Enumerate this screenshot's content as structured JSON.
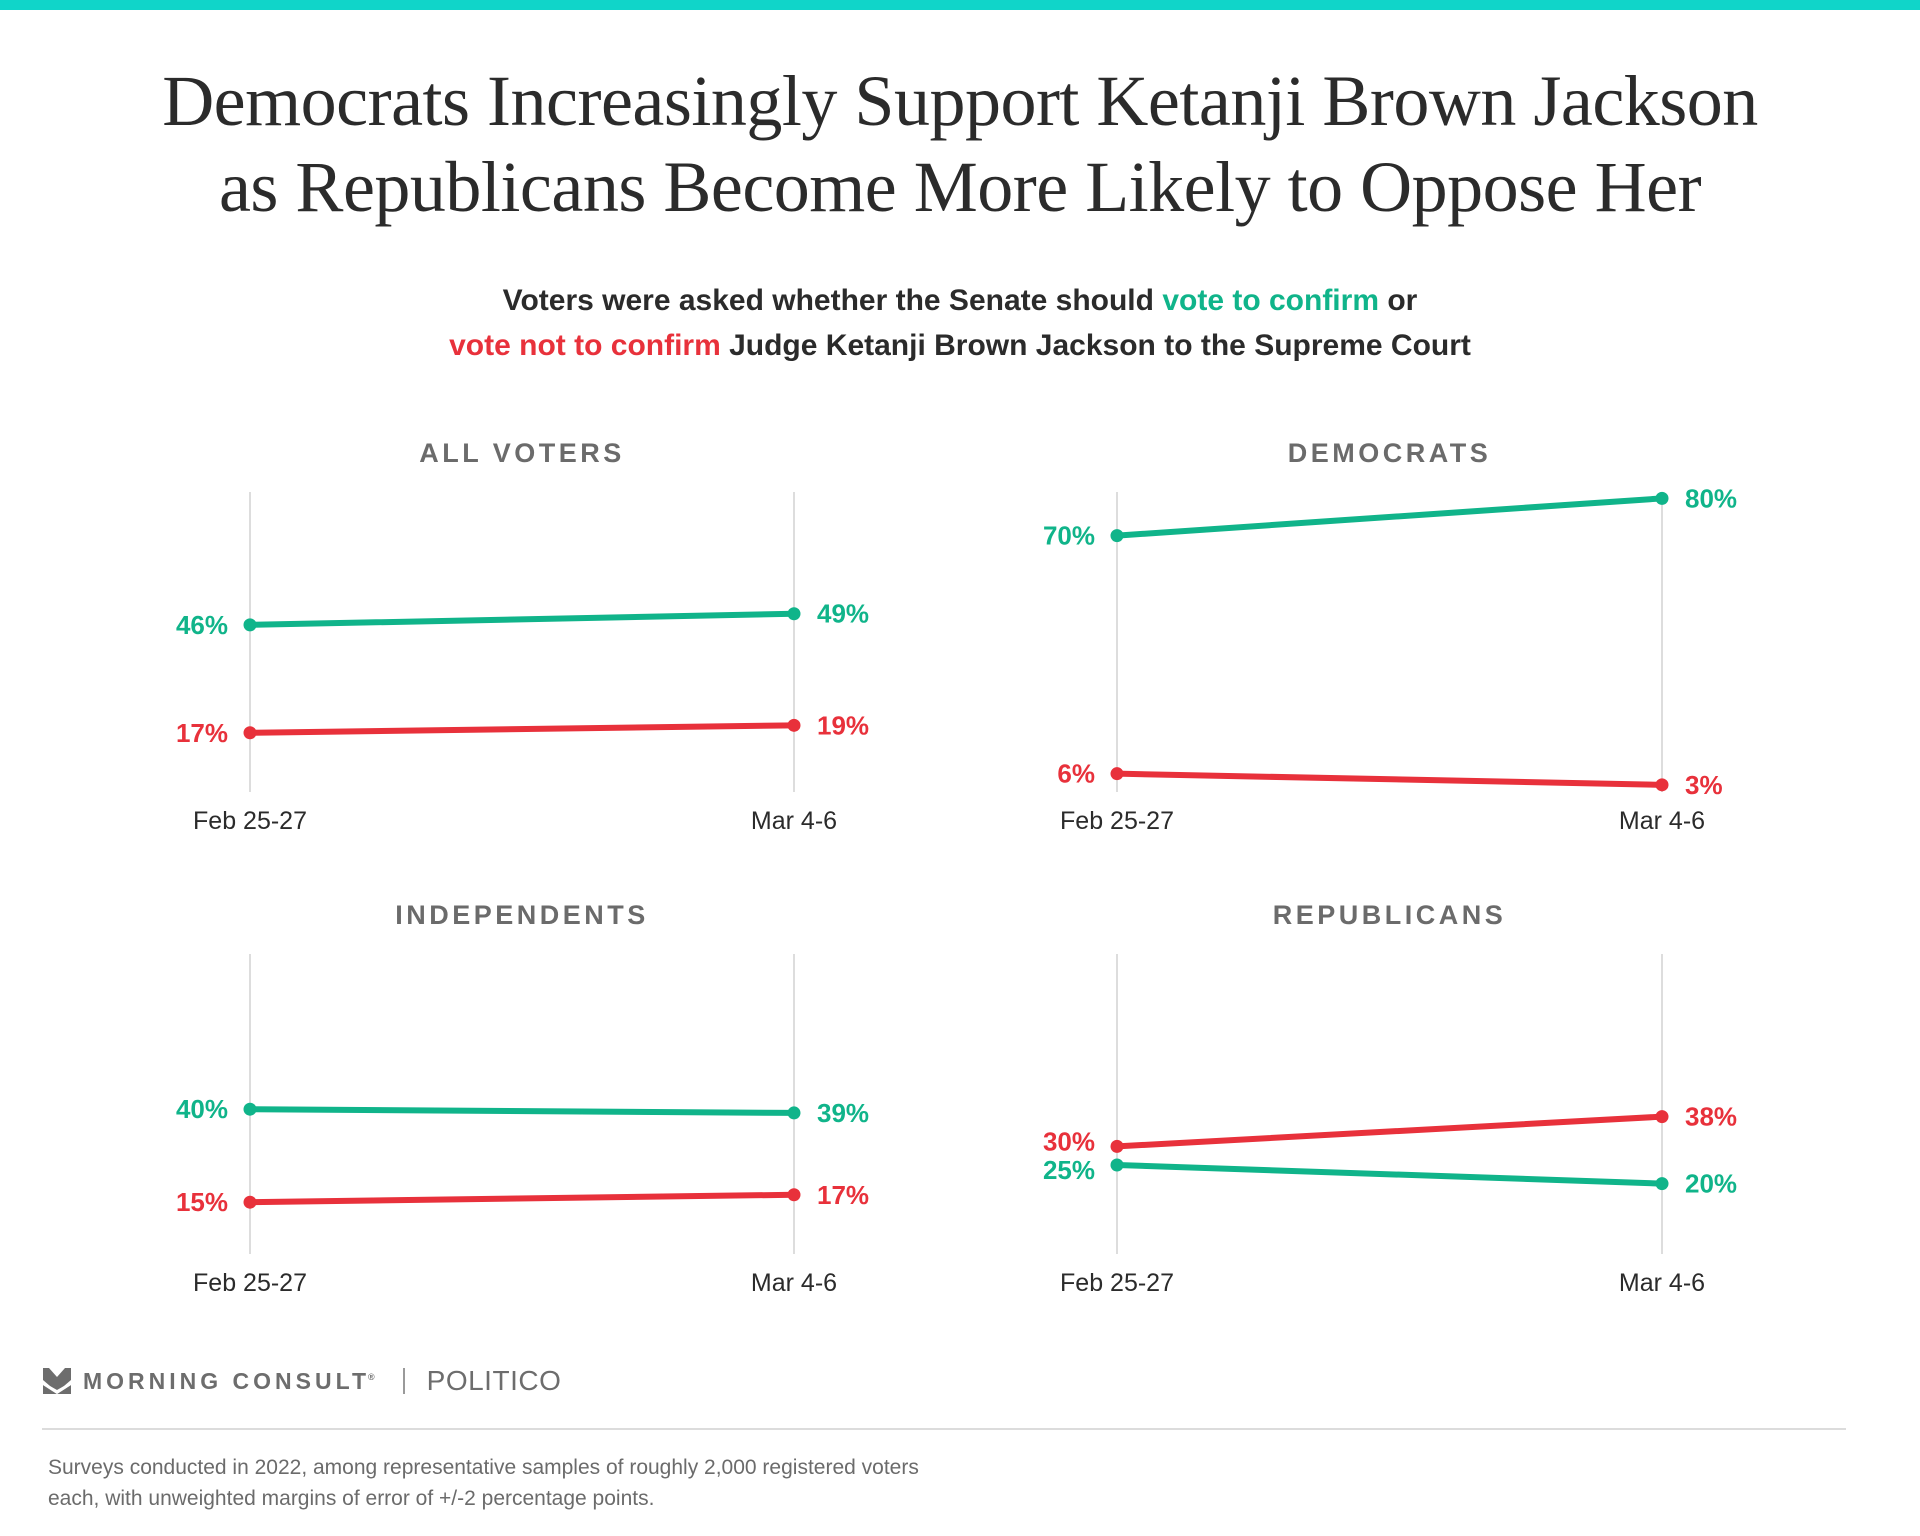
{
  "colors": {
    "accent_bar": "#10d5c9",
    "confirm": "#10b48a",
    "not_confirm": "#e8313b",
    "text": "#2b2b2b",
    "muted": "#6b6b6b",
    "gridline": "#dddddd"
  },
  "title": {
    "line1": "Democrats Increasingly Support Ketanji Brown Jackson",
    "line2": "as Republicans Become More Likely to Oppose Her"
  },
  "subtitle": {
    "line1_prefix": "Voters were asked whether the Senate should ",
    "line1_green": "vote to confirm",
    "line1_suffix": " or",
    "line2_red": "vote not to confirm",
    "line2_suffix": " Judge Ketanji Brown Jackson to the Supreme Court"
  },
  "chart_data": [
    {
      "type": "line",
      "title": "ALL VOTERS",
      "x": [
        "Feb 25-27",
        "Mar 4-6"
      ],
      "ylim": [
        0,
        81
      ],
      "grid": "vertical",
      "series": [
        {
          "name": "vote to confirm",
          "color": "#10b48a",
          "values": [
            46,
            49
          ],
          "labels": [
            "46%",
            "49%"
          ]
        },
        {
          "name": "vote not to confirm",
          "color": "#e8313b",
          "values": [
            17,
            19
          ],
          "labels": [
            "17%",
            "19%"
          ]
        }
      ]
    },
    {
      "type": "line",
      "title": "DEMOCRATS",
      "x": [
        "Feb 25-27",
        "Mar 4-6"
      ],
      "ylim": [
        0,
        81
      ],
      "grid": "vertical",
      "series": [
        {
          "name": "vote to confirm",
          "color": "#10b48a",
          "values": [
            70,
            80
          ],
          "labels": [
            "70%",
            "80%"
          ]
        },
        {
          "name": "vote not to confirm",
          "color": "#e8313b",
          "values": [
            6,
            3
          ],
          "labels": [
            "6%",
            "3%"
          ]
        }
      ]
    },
    {
      "type": "line",
      "title": "INDEPENDENTS",
      "x": [
        "Feb 25-27",
        "Mar 4-6"
      ],
      "ylim": [
        0,
        81
      ],
      "grid": "vertical",
      "series": [
        {
          "name": "vote to confirm",
          "color": "#10b48a",
          "values": [
            40,
            39
          ],
          "labels": [
            "40%",
            "39%"
          ]
        },
        {
          "name": "vote not to confirm",
          "color": "#e8313b",
          "values": [
            15,
            17
          ],
          "labels": [
            "15%",
            "17%"
          ]
        }
      ]
    },
    {
      "type": "line",
      "title": "REPUBLICANS",
      "x": [
        "Feb 25-27",
        "Mar 4-6"
      ],
      "ylim": [
        0,
        81
      ],
      "grid": "vertical",
      "series": [
        {
          "name": "vote to confirm",
          "color": "#10b48a",
          "values": [
            25,
            20
          ],
          "labels": [
            "25%",
            "20%"
          ]
        },
        {
          "name": "vote not to confirm",
          "color": "#e8313b",
          "values": [
            30,
            38
          ],
          "labels": [
            "30%",
            "38%"
          ]
        }
      ]
    }
  ],
  "footer": {
    "brand": "MORNING CONSULT",
    "brand_reg": "®",
    "partner": "POLITICO",
    "logo_icon": "morning-consult-chevron-icon",
    "note_line1": "Surveys conducted in 2022, among representative samples of roughly 2,000 registered voters",
    "note_line2": "each, with unweighted margins of error of +/-2 percentage points."
  }
}
